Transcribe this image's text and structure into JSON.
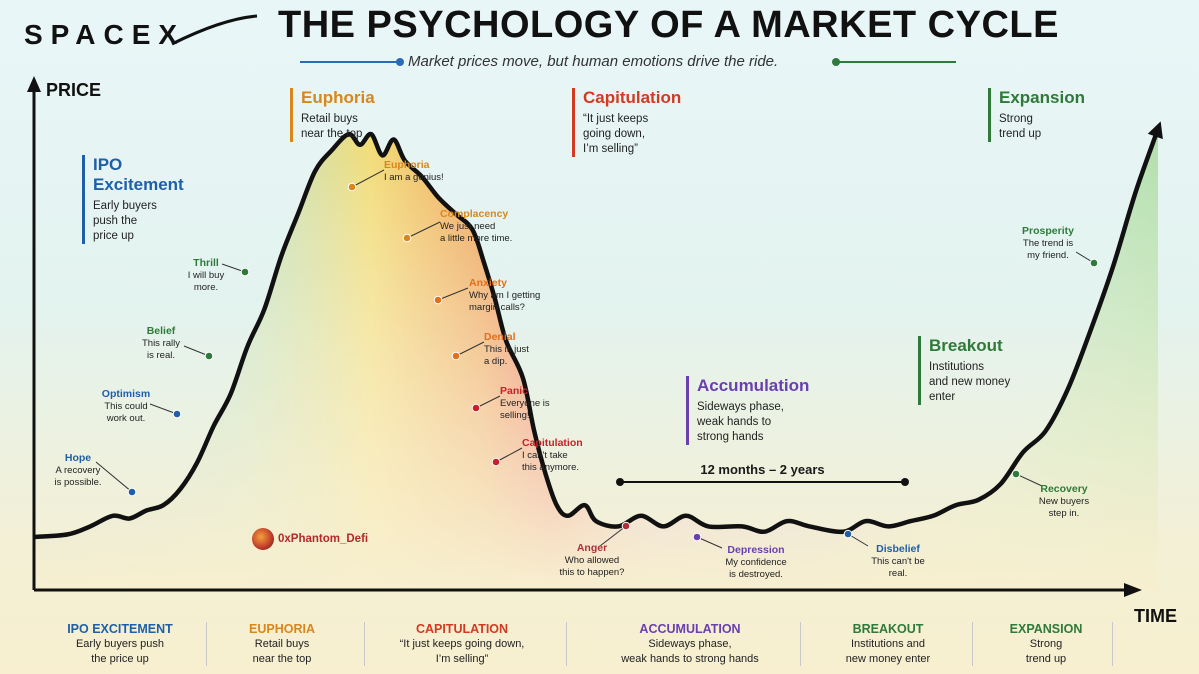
{
  "header": {
    "logo_text": "SPACEX",
    "title": "THE PSYCHOLOGY OF A MARKET CYCLE",
    "subtitle": "Market prices move, but human emotions drive the ride."
  },
  "axes": {
    "y_label": "PRICE",
    "x_label": "TIME"
  },
  "colors": {
    "blue": "#1f5fa8",
    "orange": "#d9861c",
    "red": "#d23a22",
    "purple": "#6a3fb0",
    "green": "#2f7a3a",
    "curve": "#111111"
  },
  "chart_data": {
    "type": "line",
    "title": "THE PSYCHOLOGY OF A MARKET CYCLE",
    "xlabel": "TIME",
    "ylabel": "PRICE",
    "grid": false,
    "series": [
      {
        "values": [
          [
            0,
            10
          ],
          [
            0.03,
            10.5
          ],
          [
            0.05,
            12
          ],
          [
            0.07,
            14
          ],
          [
            0.085,
            13.5
          ],
          [
            0.1,
            15
          ],
          [
            0.115,
            16
          ],
          [
            0.13,
            19
          ],
          [
            0.145,
            24
          ],
          [
            0.16,
            31
          ],
          [
            0.175,
            37
          ],
          [
            0.19,
            46
          ],
          [
            0.205,
            53
          ],
          [
            0.22,
            63
          ],
          [
            0.235,
            71
          ],
          [
            0.25,
            79
          ],
          [
            0.265,
            83
          ],
          [
            0.28,
            86
          ],
          [
            0.29,
            84
          ],
          [
            0.3,
            86
          ],
          [
            0.31,
            82
          ],
          [
            0.32,
            85
          ],
          [
            0.33,
            81
          ],
          [
            0.345,
            78
          ],
          [
            0.36,
            74
          ],
          [
            0.375,
            71
          ],
          [
            0.39,
            68
          ],
          [
            0.4,
            62
          ],
          [
            0.41,
            55
          ],
          [
            0.42,
            47
          ],
          [
            0.435,
            40
          ],
          [
            0.445,
            30
          ],
          [
            0.455,
            22
          ],
          [
            0.465,
            16
          ],
          [
            0.475,
            14
          ],
          [
            0.49,
            16
          ],
          [
            0.5,
            13
          ],
          [
            0.52,
            12
          ],
          [
            0.54,
            14
          ],
          [
            0.56,
            12
          ],
          [
            0.58,
            14
          ],
          [
            0.6,
            12
          ],
          [
            0.63,
            12
          ],
          [
            0.65,
            11
          ],
          [
            0.67,
            13
          ],
          [
            0.69,
            12
          ],
          [
            0.72,
            11
          ],
          [
            0.74,
            13
          ],
          [
            0.76,
            12
          ],
          [
            0.78,
            13
          ],
          [
            0.8,
            14
          ],
          [
            0.82,
            16
          ],
          [
            0.84,
            17
          ],
          [
            0.86,
            20
          ],
          [
            0.88,
            26
          ],
          [
            0.9,
            30
          ],
          [
            0.92,
            38
          ],
          [
            0.94,
            49
          ],
          [
            0.96,
            61
          ],
          [
            0.98,
            75
          ],
          [
            1.0,
            87
          ]
        ]
      }
    ],
    "ylim": [
      0,
      100
    ],
    "xlim": [
      0,
      1
    ]
  },
  "phases_top": [
    {
      "title": "Euphoria",
      "desc": [
        "Retail buys",
        "near the top"
      ],
      "color": "#d9861c"
    },
    {
      "title": "Capitulation",
      "desc": [
        "“It just keeps",
        "going down,",
        "I’m selling”"
      ],
      "color": "#d23a22"
    },
    {
      "title": "Expansion",
      "desc": [
        "Strong",
        "trend up"
      ],
      "color": "#2f7a3a"
    },
    {
      "title_lines": [
        "IPO",
        "Excitement"
      ],
      "desc": [
        "Early buyers",
        "push the",
        "price up"
      ],
      "color": "#1f5fa8"
    },
    {
      "title": "Accumulation",
      "desc": [
        "Sideways phase,",
        "weak hands to",
        "strong hands"
      ],
      "color": "#6a3fb0"
    },
    {
      "title": "Breakout",
      "desc": [
        "Institutions",
        "and new money",
        "enter"
      ],
      "color": "#2f7a3a"
    }
  ],
  "emotions": [
    {
      "title": "Hope",
      "lines": [
        "A recovery",
        "is possible."
      ],
      "color": "#1f5fa8"
    },
    {
      "title": "Optimism",
      "lines": [
        "This could",
        "work out."
      ],
      "color": "#1f5fa8"
    },
    {
      "title": "Belief",
      "lines": [
        "This rally",
        "is real."
      ],
      "color": "#2f7a3a"
    },
    {
      "title": "Thrill",
      "lines": [
        "I will buy",
        "more."
      ],
      "color": "#2f7a3a"
    },
    {
      "title": "Euphoria",
      "lines": [
        "I am a genius!"
      ],
      "color": "#d9861c"
    },
    {
      "title": "Complacency",
      "lines": [
        "We just need",
        "a little more time."
      ],
      "color": "#d9861c"
    },
    {
      "title": "Anxiety",
      "lines": [
        "Why am I getting",
        "margin calls?"
      ],
      "color": "#e0701c"
    },
    {
      "title": "Denial",
      "lines": [
        "This is just",
        "a dip."
      ],
      "color": "#e0701c"
    },
    {
      "title": "Panic",
      "lines": [
        "Everyone is",
        "selling!"
      ],
      "color": "#c8202a"
    },
    {
      "title": "Capitulation",
      "lines": [
        "I can't take",
        "this anymore."
      ],
      "color": "#c8202a"
    },
    {
      "title": "Anger",
      "lines": [
        "Who allowed",
        "this to happen?"
      ],
      "color": "#b0303a"
    },
    {
      "title": "Depression",
      "lines": [
        "My confidence",
        "is destroyed."
      ],
      "color": "#6a3fb0"
    },
    {
      "title": "Disbelief",
      "lines": [
        "This can't be",
        "real."
      ],
      "color": "#1f5fa8"
    },
    {
      "title": "Recovery",
      "lines": [
        "New buyers",
        "step in."
      ],
      "color": "#2f7a3a"
    },
    {
      "title": "Prosperity",
      "lines": [
        "The trend is",
        "my friend."
      ],
      "color": "#2f7a3a"
    }
  ],
  "duration_label": "12 months – 2 years",
  "watermark": "0xPhantom_Defi",
  "bottom_bar": [
    {
      "title": "IPO EXCITEMENT",
      "lines": [
        "Early buyers push",
        "the price up"
      ],
      "color": "#1f5fa8"
    },
    {
      "title": "EUPHORIA",
      "lines": [
        "Retail buys",
        "near the top"
      ],
      "color": "#d9861c"
    },
    {
      "title": "CAPITULATION",
      "lines": [
        "“It just keeps going down,",
        "I’m selling”"
      ],
      "color": "#d23a22"
    },
    {
      "title": "ACCUMULATION",
      "lines": [
        "Sideways phase,",
        "weak hands to strong hands"
      ],
      "color": "#6a3fb0"
    },
    {
      "title": "BREAKOUT",
      "lines": [
        "Institutions and",
        "new money enter"
      ],
      "color": "#2f7a3a"
    },
    {
      "title": "EXPANSION",
      "lines": [
        "Strong",
        "trend up"
      ],
      "color": "#2f7a3a"
    }
  ]
}
